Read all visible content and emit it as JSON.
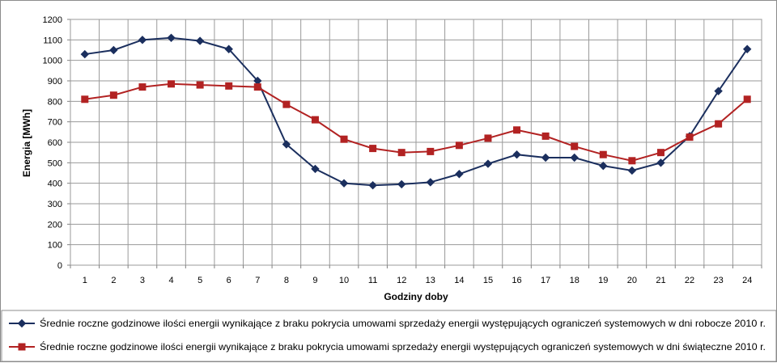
{
  "chart_data": {
    "type": "line",
    "xlabel": "Godziny doby",
    "ylabel": "Energia [MWh]",
    "ylim": [
      0,
      1200
    ],
    "yticks": [
      0,
      100,
      200,
      300,
      400,
      500,
      600,
      700,
      800,
      900,
      1000,
      1100,
      1200
    ],
    "categories": [
      "1",
      "2",
      "3",
      "4",
      "5",
      "6",
      "7",
      "8",
      "9",
      "10",
      "11",
      "12",
      "13",
      "14",
      "15",
      "16",
      "17",
      "18",
      "19",
      "20",
      "21",
      "22",
      "23",
      "24"
    ],
    "grid": true,
    "legend_position": "bottom",
    "series": [
      {
        "name": "Średnie roczne godzinowe ilości energii wynikające z braku pokrycia umowami sprzedaży energii występujących ograniczeń systemowych w dni robocze 2010 r.",
        "color": "#1b2f5e",
        "marker": "diamond",
        "values": [
          1030,
          1050,
          1100,
          1110,
          1095,
          1055,
          900,
          590,
          470,
          400,
          390,
          395,
          405,
          445,
          495,
          540,
          525,
          525,
          485,
          462,
          500,
          630,
          850,
          1055
        ]
      },
      {
        "name": "Średnie roczne godzinowe ilości energii wynikające z braku pokrycia umowami sprzedaży energii występujących ograniczeń systemowych w dni świąteczne 2010 r.",
        "color": "#b22222",
        "marker": "square",
        "values": [
          810,
          830,
          870,
          885,
          880,
          875,
          870,
          785,
          710,
          615,
          570,
          550,
          555,
          585,
          620,
          660,
          630,
          580,
          540,
          510,
          550,
          625,
          690,
          810
        ]
      }
    ]
  }
}
